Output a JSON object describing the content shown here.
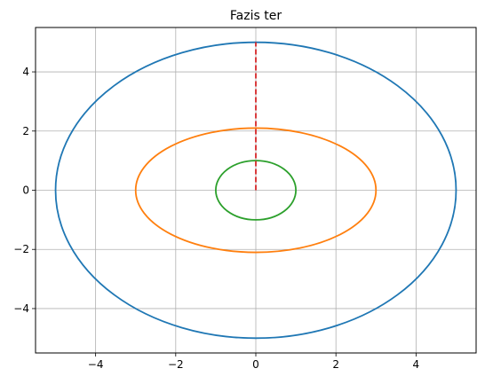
{
  "chart_data": {
    "type": "line",
    "title": "Fazis ter",
    "xlabel": "",
    "ylabel": "",
    "xlim": [
      -5.5,
      5.5
    ],
    "ylim": [
      -5.5,
      5.5
    ],
    "grid": true,
    "x_ticks": [
      -4,
      -2,
      0,
      2,
      4
    ],
    "y_ticks": [
      -4,
      -2,
      0,
      2,
      4
    ],
    "x_tick_labels": [
      "−4",
      "−2",
      "0",
      "2",
      "4"
    ],
    "y_tick_labels": [
      "−4",
      "−2",
      "0",
      "2",
      "4"
    ],
    "series": [
      {
        "kind": "ellipse",
        "center": [
          0,
          0
        ],
        "semi_axis_x": 5.0,
        "semi_axis_y": 5.0,
        "color": "#1f77b4"
      },
      {
        "kind": "ellipse",
        "center": [
          0,
          0
        ],
        "semi_axis_x": 3.0,
        "semi_axis_y": 2.1,
        "color": "#ff7f0e"
      },
      {
        "kind": "ellipse",
        "center": [
          0,
          0
        ],
        "semi_axis_x": 1.0,
        "semi_axis_y": 1.0,
        "color": "#2ca02c"
      },
      {
        "kind": "line",
        "x": [
          0,
          0
        ],
        "y": [
          0,
          5.0
        ],
        "color": "#d62728",
        "style": "dashed"
      }
    ]
  }
}
